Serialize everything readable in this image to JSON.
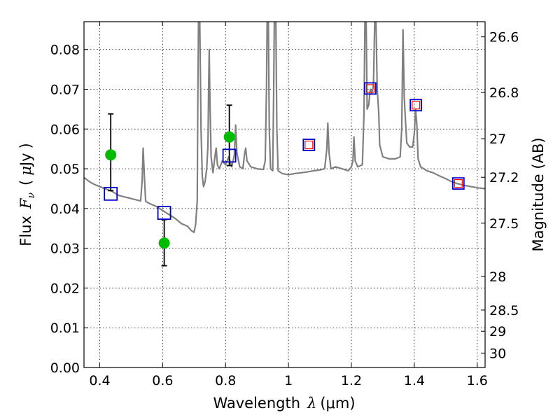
{
  "chart_data": {
    "type": "line",
    "title": "",
    "xlabel": "Wavelength",
    "xlabel_symbol": "λ",
    "xlabel_unit": "(μm)",
    "ylabel": "Flux",
    "ylabel_symbol": "F",
    "ylabel_symbol_sub": "ν",
    "ylabel_unit_open": "(",
    "ylabel_unit_mu": "μ",
    "ylabel_unit_rest": "Jy",
    "ylabel_unit_close": ")",
    "y2label": "Magnitude (AB)",
    "xlim": [
      0.35,
      1.625
    ],
    "ylim": [
      0.0,
      0.087
    ],
    "grid": true,
    "x_ticks": [
      0.4,
      0.6,
      0.8,
      1.0,
      1.2,
      1.4,
      1.6
    ],
    "x_tick_labels": [
      "0.4",
      "0.6",
      "0.8",
      "1",
      "1.2",
      "1.4",
      "1.6"
    ],
    "y_ticks": [
      0.0,
      0.01,
      0.02,
      0.03,
      0.04,
      0.05,
      0.06,
      0.07,
      0.08
    ],
    "y_tick_labels": [
      "0.00",
      "0.01",
      "0.02",
      "0.03",
      "0.04",
      "0.05",
      "0.06",
      "0.07",
      "0.08"
    ],
    "y2_ticks": [
      {
        "value": 26.6,
        "label": "26.6"
      },
      {
        "value": 26.8,
        "label": "26.8"
      },
      {
        "value": 27.0,
        "label": "27"
      },
      {
        "value": 27.2,
        "label": "27.2"
      },
      {
        "value": 27.5,
        "label": "27.5"
      },
      {
        "value": 28.0,
        "label": "28"
      },
      {
        "value": 28.5,
        "label": "28.5"
      },
      {
        "value": 29.0,
        "label": "29"
      },
      {
        "value": 30.0,
        "label": "30"
      }
    ],
    "series": [
      {
        "name": "model-spectrum",
        "kind": "line",
        "color": "#808080",
        "points": [
          [
            0.35,
            0.0478
          ],
          [
            0.36,
            0.0472
          ],
          [
            0.37,
            0.0466
          ],
          [
            0.38,
            0.0462
          ],
          [
            0.39,
            0.0458
          ],
          [
            0.4,
            0.0455
          ],
          [
            0.41,
            0.0452
          ],
          [
            0.42,
            0.0449
          ],
          [
            0.43,
            0.0446
          ],
          [
            0.44,
            0.0443
          ],
          [
            0.45,
            0.0438
          ],
          [
            0.46,
            0.0433
          ],
          [
            0.47,
            0.0431
          ],
          [
            0.48,
            0.0429
          ],
          [
            0.49,
            0.0427
          ],
          [
            0.5,
            0.0425
          ],
          [
            0.51,
            0.0423
          ],
          [
            0.52,
            0.0421
          ],
          [
            0.53,
            0.0419
          ],
          [
            0.535,
            0.047
          ],
          [
            0.538,
            0.0552
          ],
          [
            0.542,
            0.048
          ],
          [
            0.546,
            0.0418
          ],
          [
            0.56,
            0.0412
          ],
          [
            0.58,
            0.0405
          ],
          [
            0.6,
            0.0395
          ],
          [
            0.62,
            0.0385
          ],
          [
            0.64,
            0.0375
          ],
          [
            0.66,
            0.0362
          ],
          [
            0.68,
            0.0355
          ],
          [
            0.69,
            0.0345
          ],
          [
            0.7,
            0.034
          ],
          [
            0.705,
            0.036
          ],
          [
            0.71,
            0.042
          ],
          [
            0.712,
            0.07
          ],
          [
            0.714,
            0.087
          ],
          [
            0.718,
            0.087
          ],
          [
            0.722,
            0.06
          ],
          [
            0.726,
            0.048
          ],
          [
            0.73,
            0.0455
          ],
          [
            0.735,
            0.0468
          ],
          [
            0.74,
            0.05
          ],
          [
            0.744,
            0.056
          ],
          [
            0.746,
            0.07
          ],
          [
            0.748,
            0.08
          ],
          [
            0.75,
            0.068
          ],
          [
            0.754,
            0.053
          ],
          [
            0.76,
            0.049
          ],
          [
            0.766,
            0.053
          ],
          [
            0.77,
            0.0552
          ],
          [
            0.774,
            0.051
          ],
          [
            0.78,
            0.05
          ],
          [
            0.79,
            0.052
          ],
          [
            0.8,
            0.051
          ],
          [
            0.81,
            0.053
          ],
          [
            0.82,
            0.0505
          ],
          [
            0.828,
            0.0535
          ],
          [
            0.832,
            0.061
          ],
          [
            0.836,
            0.054
          ],
          [
            0.845,
            0.0505
          ],
          [
            0.855,
            0.05
          ],
          [
            0.86,
            0.0535
          ],
          [
            0.864,
            0.0552
          ],
          [
            0.868,
            0.052
          ],
          [
            0.88,
            0.0505
          ],
          [
            0.9,
            0.05
          ],
          [
            0.92,
            0.0498
          ],
          [
            0.926,
            0.052
          ],
          [
            0.93,
            0.07
          ],
          [
            0.932,
            0.087
          ],
          [
            0.936,
            0.087
          ],
          [
            0.939,
            0.06
          ],
          [
            0.943,
            0.05
          ],
          [
            0.95,
            0.0495
          ],
          [
            0.953,
            0.07
          ],
          [
            0.955,
            0.087
          ],
          [
            0.96,
            0.087
          ],
          [
            0.963,
            0.06
          ],
          [
            0.967,
            0.0495
          ],
          [
            0.98,
            0.0488
          ],
          [
            1.0,
            0.0485
          ],
          [
            1.02,
            0.0488
          ],
          [
            1.04,
            0.049
          ],
          [
            1.06,
            0.0492
          ],
          [
            1.08,
            0.0495
          ],
          [
            1.1,
            0.0497
          ],
          [
            1.115,
            0.05
          ],
          [
            1.122,
            0.055
          ],
          [
            1.125,
            0.0615
          ],
          [
            1.129,
            0.054
          ],
          [
            1.135,
            0.05
          ],
          [
            1.15,
            0.0505
          ],
          [
            1.17,
            0.05
          ],
          [
            1.19,
            0.0495
          ],
          [
            1.2,
            0.0505
          ],
          [
            1.205,
            0.052
          ],
          [
            1.208,
            0.058
          ],
          [
            1.212,
            0.052
          ],
          [
            1.22,
            0.0505
          ],
          [
            1.235,
            0.051
          ],
          [
            1.24,
            0.064
          ],
          [
            1.243,
            0.087
          ],
          [
            1.247,
            0.087
          ],
          [
            1.25,
            0.065
          ],
          [
            1.255,
            0.066
          ],
          [
            1.26,
            0.07
          ],
          [
            1.265,
            0.069
          ],
          [
            1.27,
            0.071
          ],
          [
            1.274,
            0.087
          ],
          [
            1.278,
            0.087
          ],
          [
            1.282,
            0.07
          ],
          [
            1.287,
            0.064
          ],
          [
            1.29,
            0.056
          ],
          [
            1.3,
            0.053
          ],
          [
            1.32,
            0.0525
          ],
          [
            1.34,
            0.0525
          ],
          [
            1.355,
            0.053
          ],
          [
            1.36,
            0.06
          ],
          [
            1.364,
            0.085
          ],
          [
            1.368,
            0.068
          ],
          [
            1.372,
            0.062
          ],
          [
            1.376,
            0.0565
          ],
          [
            1.385,
            0.0555
          ],
          [
            1.395,
            0.0555
          ],
          [
            1.4,
            0.059
          ],
          [
            1.404,
            0.065
          ],
          [
            1.408,
            0.061
          ],
          [
            1.412,
            0.0525
          ],
          [
            1.42,
            0.0505
          ],
          [
            1.44,
            0.0495
          ],
          [
            1.46,
            0.049
          ],
          [
            1.48,
            0.0482
          ],
          [
            1.5,
            0.0475
          ],
          [
            1.52,
            0.0467
          ],
          [
            1.54,
            0.0462
          ],
          [
            1.56,
            0.0458
          ],
          [
            1.58,
            0.0455
          ],
          [
            1.6,
            0.0452
          ],
          [
            1.625,
            0.045
          ]
        ]
      }
    ],
    "measurements": {
      "name": "observed-photometry",
      "color": "#00bb00",
      "errorbar_color": "#000000",
      "points": [
        {
          "x": 0.435,
          "y": 0.0535,
          "err_low": 0.0445,
          "err_high": 0.0638
        },
        {
          "x": 0.605,
          "y": 0.0313,
          "err_low": 0.0256,
          "err_high": 0.0372
        },
        {
          "x": 0.812,
          "y": 0.058,
          "err_low": 0.0508,
          "err_high": 0.066
        }
      ]
    },
    "model_photometry": {
      "name": "model-photometry",
      "edge_color": "#0000cc",
      "points": [
        {
          "x": 0.435,
          "y": 0.0437
        },
        {
          "x": 0.605,
          "y": 0.0389
        },
        {
          "x": 0.812,
          "y": 0.0533
        }
      ]
    },
    "nir_photometry": {
      "name": "nir-photometry",
      "outer_color": "#0000cc",
      "inner_color": "#ff0000",
      "points": [
        {
          "x": 1.065,
          "y": 0.056
        },
        {
          "x": 1.26,
          "y": 0.0702
        },
        {
          "x": 1.405,
          "y": 0.066
        },
        {
          "x": 1.54,
          "y": 0.0463
        }
      ]
    }
  }
}
